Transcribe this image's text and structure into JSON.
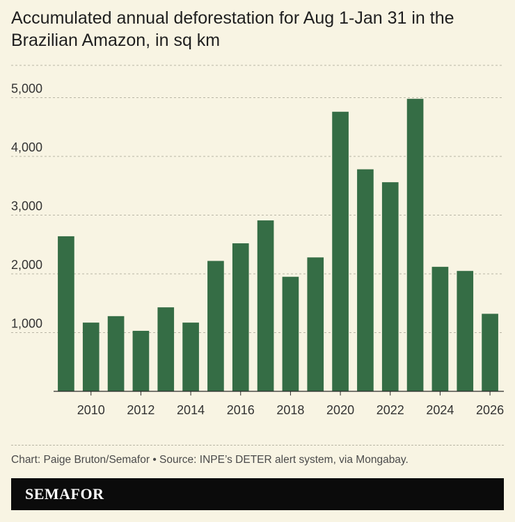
{
  "chart_data": {
    "type": "bar",
    "title": "Accumulated annual deforestation for Aug 1-Jan 31 in the Brazilian Amazon, in sq km",
    "xlabel": "",
    "ylabel": "",
    "x": [
      2009,
      2010,
      2011,
      2012,
      2013,
      2014,
      2015,
      2016,
      2017,
      2018,
      2019,
      2020,
      2021,
      2022,
      2023,
      2024,
      2025,
      2026
    ],
    "values": [
      2640,
      1170,
      1280,
      1030,
      1430,
      1170,
      2220,
      2520,
      2910,
      1950,
      2280,
      4760,
      3780,
      3560,
      4980,
      2120,
      2050,
      1320
    ],
    "ylim": [
      0,
      5550
    ],
    "yticks": [
      1000,
      2000,
      3000,
      4000,
      5000
    ],
    "ytick_labels": [
      "1,000",
      "2,000",
      "3,000",
      "4,000",
      "5,000"
    ],
    "xticks": [
      "2010",
      "2012",
      "2014",
      "2016",
      "2018",
      "2020",
      "2022",
      "2024",
      "2026"
    ],
    "grid": true,
    "bar_color": "#356d45"
  },
  "footer": {
    "source": "Chart: Paige Bruton/Semafor • Source: INPE’s DETER alert system, via Mongabay.",
    "brand": "SEMAFOR"
  }
}
